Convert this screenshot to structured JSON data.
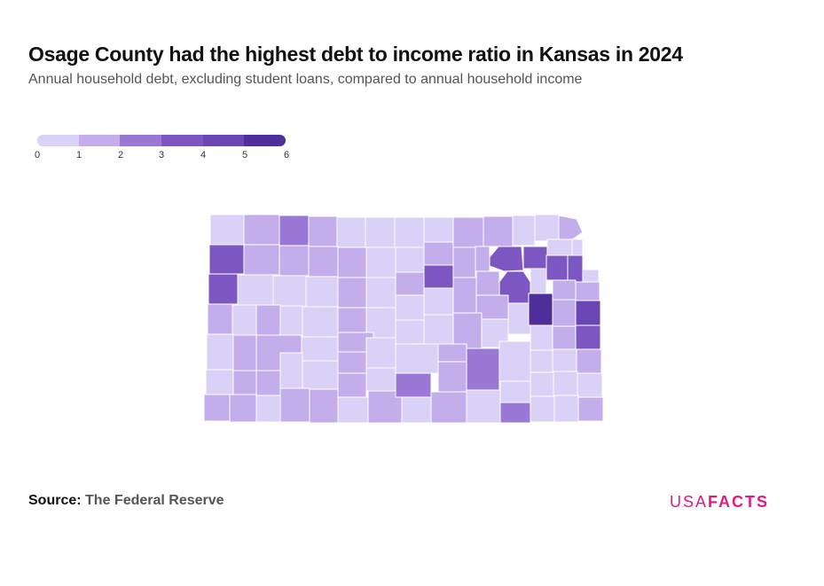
{
  "title": "Osage County had the highest debt to income ratio in Kansas in 2024",
  "subtitle": "Annual household debt, excluding student loans, compared to annual household income",
  "legend": {
    "ticks": [
      "0",
      "1",
      "2",
      "3",
      "4",
      "5",
      "6"
    ],
    "colors": [
      "#d9d1f6",
      "#c3adea",
      "#9a78d6",
      "#7c57c2",
      "#6a45b4",
      "#4e2e9b"
    ]
  },
  "map": {
    "region": "Kansas",
    "colors": {
      "bin0": "#d9d1f6",
      "bin1": "#c3adea",
      "bin2": "#9a78d6",
      "bin3": "#7c57c2",
      "bin4": "#6a45b4",
      "bin5": "#4e2e9b",
      "border": "#ffffff"
    }
  },
  "source": {
    "label": "Source:",
    "name": "The Federal Reserve"
  },
  "brand": {
    "light": "USA",
    "bold": "FACTS"
  }
}
